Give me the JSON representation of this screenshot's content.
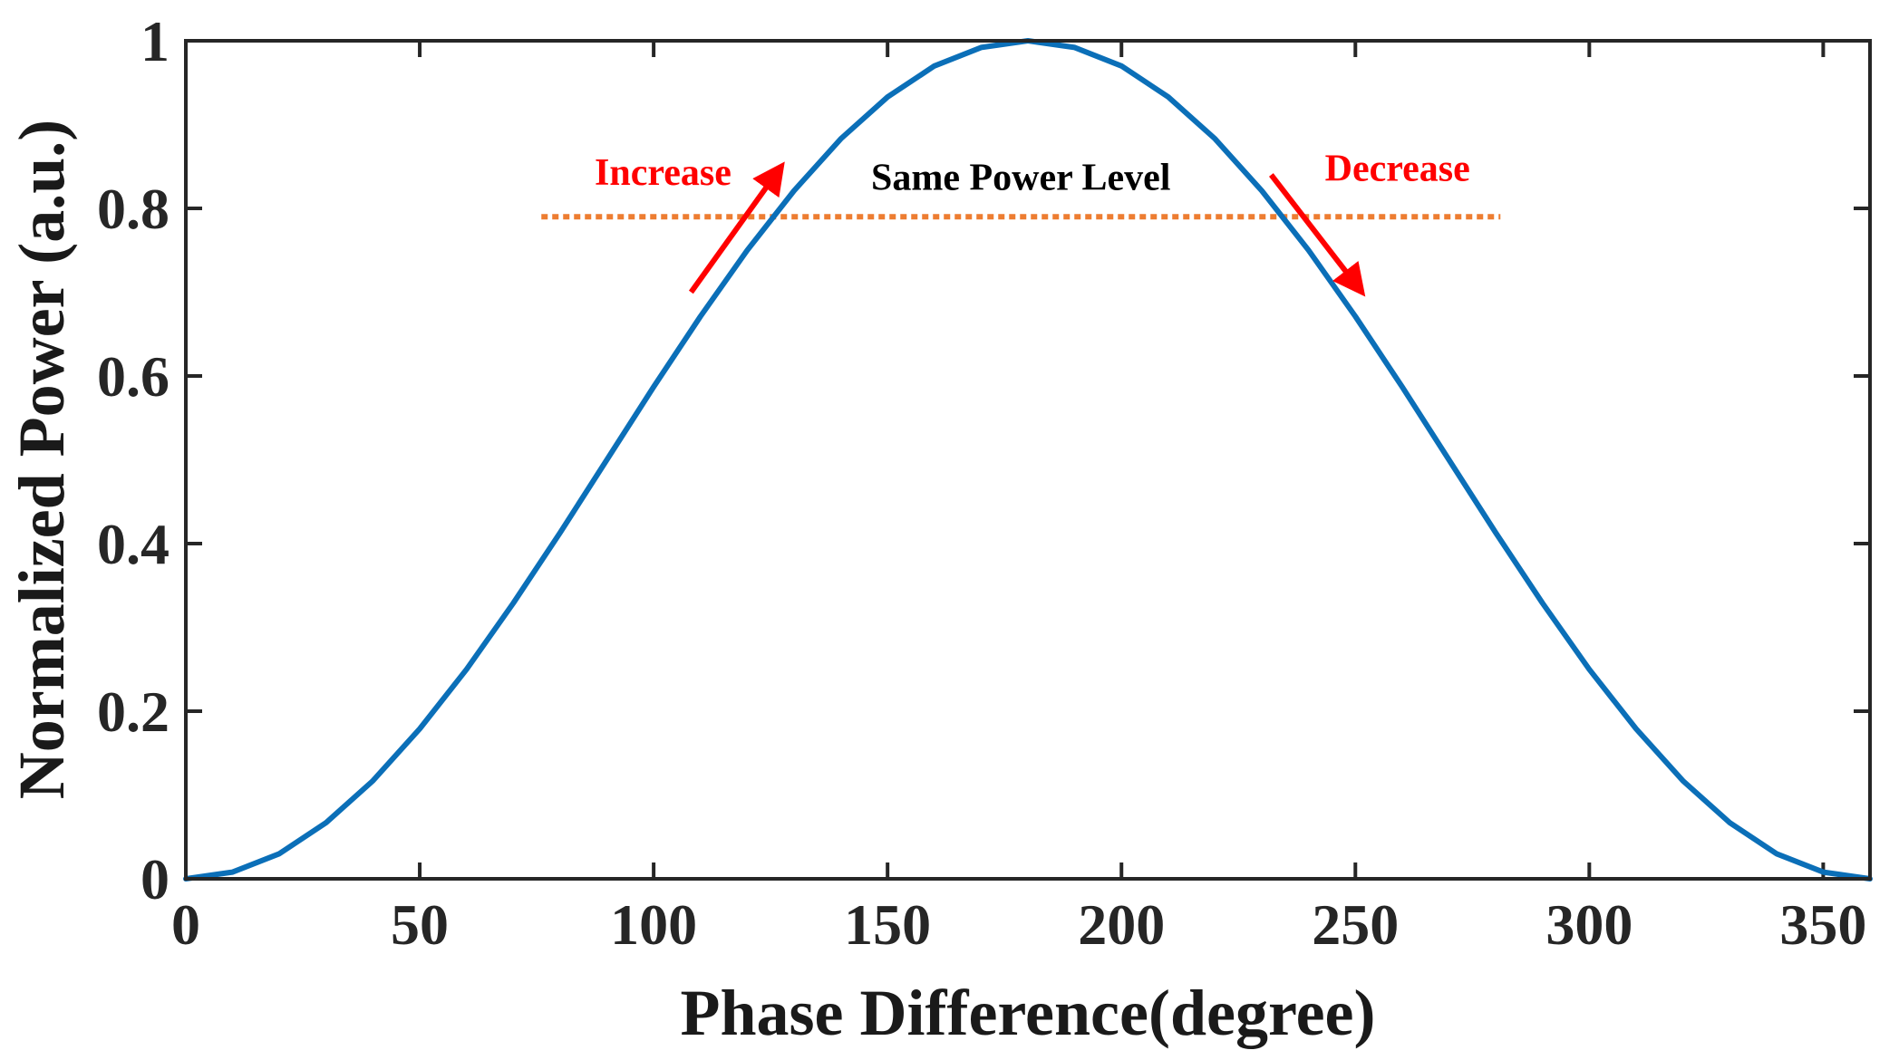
{
  "chart_data": {
    "type": "line",
    "title": "",
    "xlabel": "Phase Difference(degree)",
    "ylabel": "Normalized Power (a.u.)",
    "xlim": [
      0,
      360
    ],
    "ylim": [
      0,
      1
    ],
    "xticks": [
      0,
      50,
      100,
      150,
      200,
      250,
      300,
      350
    ],
    "yticks": [
      0,
      0.2,
      0.4,
      0.6,
      0.8,
      1
    ],
    "ytick_labels": [
      "0",
      "0.2",
      "0.4",
      "0.6",
      "0.8",
      "1"
    ],
    "grid": false,
    "series": [
      {
        "color": "#0b6fb8",
        "x": [
          0,
          10,
          20,
          30,
          40,
          50,
          60,
          70,
          80,
          90,
          100,
          110,
          120,
          130,
          140,
          150,
          160,
          170,
          180,
          190,
          200,
          210,
          220,
          230,
          240,
          250,
          260,
          270,
          280,
          290,
          300,
          310,
          320,
          330,
          340,
          350,
          360
        ],
        "y": [
          0,
          0.008,
          0.03,
          0.067,
          0.117,
          0.179,
          0.25,
          0.329,
          0.413,
          0.5,
          0.587,
          0.671,
          0.75,
          0.821,
          0.883,
          0.933,
          0.97,
          0.992,
          1,
          0.992,
          0.97,
          0.933,
          0.883,
          0.821,
          0.75,
          0.671,
          0.587,
          0.5,
          0.413,
          0.329,
          0.25,
          0.179,
          0.117,
          0.067,
          0.03,
          0.008,
          0
        ]
      }
    ],
    "reference_line": {
      "label": "Same Power Level",
      "y": 0.79,
      "x_start": 76,
      "x_end": 281,
      "color": "#ed7d31"
    },
    "annotations": [
      {
        "text": "Increase",
        "color": "#ff0000",
        "x": 102,
        "y": 0.828,
        "arrow_from": [
          108,
          0.7
        ],
        "arrow_to": [
          126,
          0.84
        ]
      },
      {
        "text": "Decrease",
        "color": "#ff0000",
        "x": 259,
        "y": 0.833,
        "arrow_from": [
          232,
          0.84
        ],
        "arrow_to": [
          250,
          0.71
        ]
      }
    ]
  }
}
